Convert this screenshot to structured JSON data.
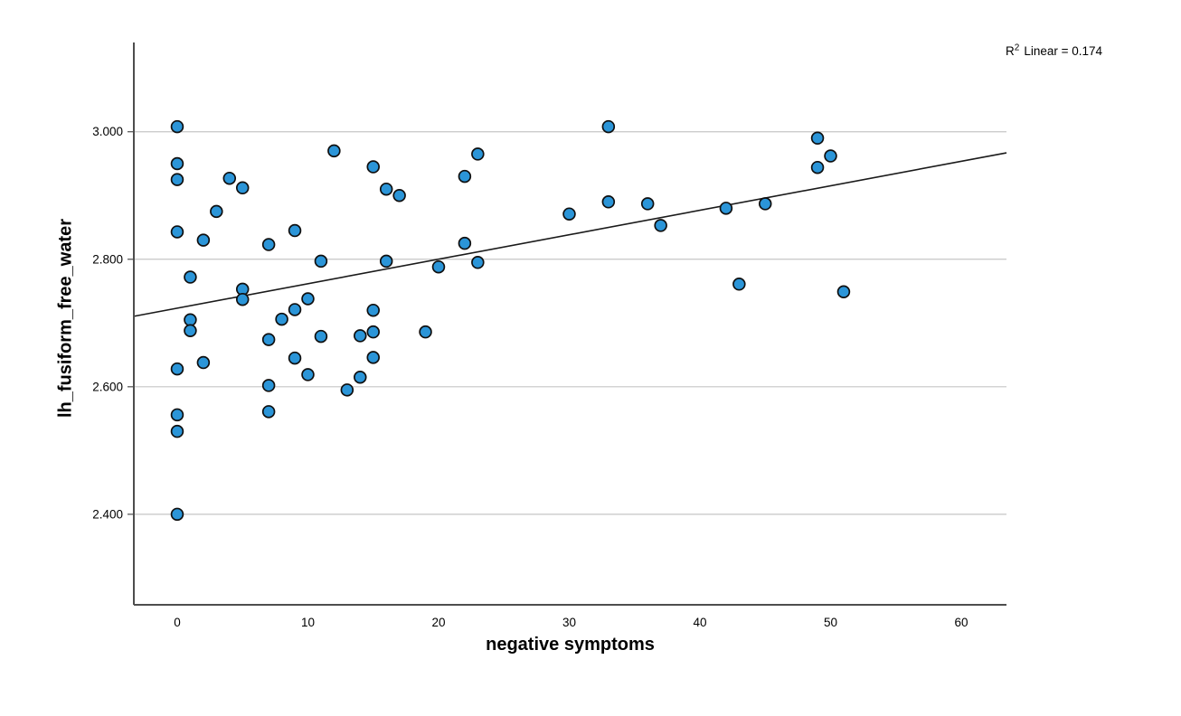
{
  "annotation": {
    "r_prefix": "R",
    "r_superscript": "2",
    "r_text": "Linear = 0.174"
  },
  "chart_data": {
    "type": "scatter",
    "title": "",
    "xlabel": "negative symptoms",
    "ylabel": "lh_fusiform_free_water",
    "xlim": [
      -3.32,
      63.46
    ],
    "ylim": [
      2.258,
      3.14
    ],
    "x_ticks": [
      0,
      10,
      20,
      30,
      40,
      50,
      60
    ],
    "x_tick_labels": [
      "0",
      "10",
      "20",
      "30",
      "40",
      "50",
      "60"
    ],
    "y_ticks": [
      2.4,
      2.6,
      2.8,
      3.0
    ],
    "y_tick_labels": [
      "2.400",
      "2.600",
      "2.800",
      "3.000"
    ],
    "grid": "horizontal-only",
    "legend": "none",
    "r_squared": 0.174,
    "points": [
      [
        0,
        3.008
      ],
      [
        0,
        2.95
      ],
      [
        0,
        2.925
      ],
      [
        0,
        2.843
      ],
      [
        0,
        2.628
      ],
      [
        0,
        2.556
      ],
      [
        0,
        2.53
      ],
      [
        0,
        2.4
      ],
      [
        1,
        2.772
      ],
      [
        1,
        2.705
      ],
      [
        1,
        2.688
      ],
      [
        2,
        2.83
      ],
      [
        2,
        2.638
      ],
      [
        3,
        2.875
      ],
      [
        4,
        2.927
      ],
      [
        5,
        2.912
      ],
      [
        5,
        2.753
      ],
      [
        5,
        2.737
      ],
      [
        7,
        2.823
      ],
      [
        7,
        2.674
      ],
      [
        7,
        2.602
      ],
      [
        7,
        2.561
      ],
      [
        8,
        2.706
      ],
      [
        9,
        2.845
      ],
      [
        9,
        2.721
      ],
      [
        9,
        2.645
      ],
      [
        10,
        2.738
      ],
      [
        10,
        2.619
      ],
      [
        11,
        2.797
      ],
      [
        11,
        2.679
      ],
      [
        12,
        2.97
      ],
      [
        13,
        2.595
      ],
      [
        14,
        2.68
      ],
      [
        14,
        2.615
      ],
      [
        15,
        2.945
      ],
      [
        15,
        2.72
      ],
      [
        15,
        2.686
      ],
      [
        15,
        2.646
      ],
      [
        16,
        2.91
      ],
      [
        16,
        2.797
      ],
      [
        17,
        2.9
      ],
      [
        19,
        2.686
      ],
      [
        20,
        2.788
      ],
      [
        22,
        2.93
      ],
      [
        22,
        2.825
      ],
      [
        23,
        2.965
      ],
      [
        23,
        2.795
      ],
      [
        30,
        2.871
      ],
      [
        33,
        3.008
      ],
      [
        33,
        2.89
      ],
      [
        36,
        2.887
      ],
      [
        37,
        2.853
      ],
      [
        42,
        2.88
      ],
      [
        43,
        2.761
      ],
      [
        45,
        2.887
      ],
      [
        49,
        2.99
      ],
      [
        49,
        2.944
      ],
      [
        50,
        2.962
      ],
      [
        51,
        2.749
      ]
    ],
    "fit_line": {
      "x1": -3.32,
      "y1": 2.7105,
      "x2": 63.46,
      "y2": 2.9669
    },
    "colors": {
      "point_fill": "#2B95D8",
      "point_stroke": "#0f0f0f",
      "grid": "#c6c6c6",
      "axis": "#4d4d4d",
      "fit_line": "#1a1a1a",
      "text": "#000000",
      "background": "#ffffff"
    }
  }
}
